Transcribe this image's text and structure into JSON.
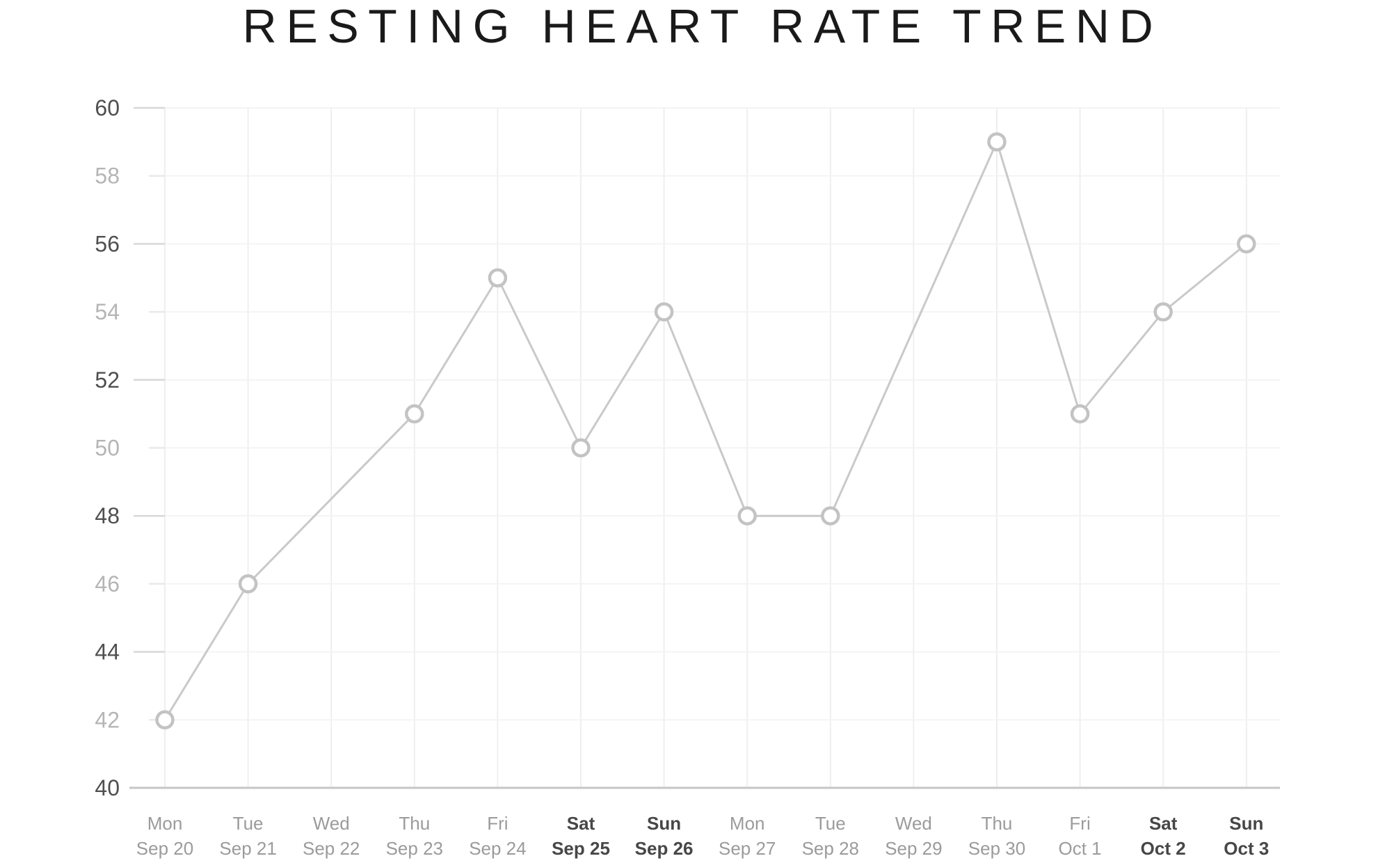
{
  "title": "RESTING HEART RATE TREND",
  "chart_data": {
    "type": "line",
    "title": "RESTING HEART RATE TREND",
    "categories": [
      {
        "weekday": "Mon",
        "date": "Sep 20",
        "weekend": false
      },
      {
        "weekday": "Tue",
        "date": "Sep 21",
        "weekend": false
      },
      {
        "weekday": "Wed",
        "date": "Sep 22",
        "weekend": false
      },
      {
        "weekday": "Thu",
        "date": "Sep 23",
        "weekend": false
      },
      {
        "weekday": "Fri",
        "date": "Sep 24",
        "weekend": false
      },
      {
        "weekday": "Sat",
        "date": "Sep 25",
        "weekend": true
      },
      {
        "weekday": "Sun",
        "date": "Sep 26",
        "weekend": true
      },
      {
        "weekday": "Mon",
        "date": "Sep 27",
        "weekend": false
      },
      {
        "weekday": "Tue",
        "date": "Sep 28",
        "weekend": false
      },
      {
        "weekday": "Wed",
        "date": "Sep 29",
        "weekend": false
      },
      {
        "weekday": "Thu",
        "date": "Sep 30",
        "weekend": false
      },
      {
        "weekday": "Fri",
        "date": "Oct 1",
        "weekend": false
      },
      {
        "weekday": "Sat",
        "date": "Oct 2",
        "weekend": true
      },
      {
        "weekday": "Sun",
        "date": "Oct 3",
        "weekend": true
      }
    ],
    "values": [
      42,
      46,
      null,
      51,
      55,
      50,
      54,
      48,
      48,
      null,
      59,
      51,
      54,
      56
    ],
    "missing_points_interpolated": true,
    "xlabel": "",
    "ylabel": "",
    "ylim": [
      40,
      60
    ],
    "ytick_step": 2,
    "yticks_dark": [
      40,
      44,
      48,
      52,
      56,
      60
    ],
    "yticks_light": [
      42,
      46,
      50,
      54,
      58
    ],
    "grid": true,
    "legend_position": "none",
    "marker": "open-circle"
  },
  "colors": {
    "background": "#ffffff",
    "title_text": "#1a1a1a",
    "series_line": "#c9c9c9",
    "marker_stroke": "#c3c3c3",
    "marker_fill": "#ffffff",
    "axis_line": "#c6c6c6",
    "gridline_vertical": "#ededed",
    "gridline_horizontal": "#f3f3f3",
    "tick_major": "#d8d8d8",
    "tick_minor": "#e9e9e9",
    "ylabel_dark": "#4f4f4f",
    "ylabel_light": "#b5b5b5",
    "xlabel_gray": "#9b9b9b",
    "xlabel_weekend": "#474747"
  }
}
